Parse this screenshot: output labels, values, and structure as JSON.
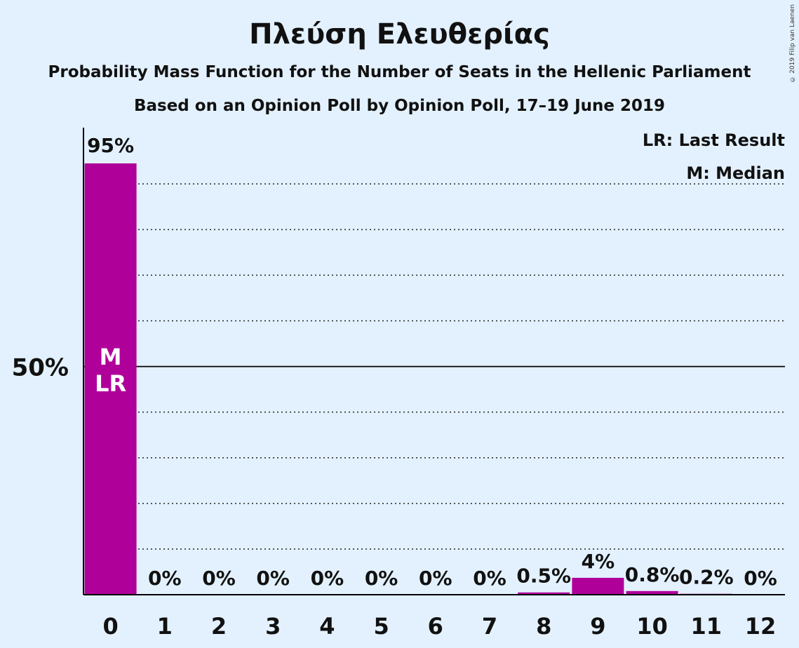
{
  "title": "Πλεύση Ελευθερίας",
  "subtitle": "Probability Mass Function for the Number of Seats in the Hellenic Parliament",
  "subtitle2": "Based on an Opinion Poll by Opinion Poll, 17–19 June 2019",
  "copyright": "© 2019 Filip van Laenen",
  "legend": {
    "lr": "LR: Last Result",
    "m": "M: Median"
  },
  "colors": {
    "bar": "#b0009a",
    "background": "#e3f1fe"
  },
  "chart_data": {
    "type": "bar",
    "categories": [
      "0",
      "1",
      "2",
      "3",
      "4",
      "5",
      "6",
      "7",
      "8",
      "9",
      "10",
      "11",
      "12"
    ],
    "values": [
      94.5,
      0,
      0,
      0,
      0,
      0,
      0,
      0,
      0.5,
      3.7,
      0.8,
      0.2,
      0
    ],
    "data_labels": [
      "95%",
      "0%",
      "0%",
      "0%",
      "0%",
      "0%",
      "0%",
      "0%",
      "0.5%",
      "4%",
      "0.8%",
      "0.2%",
      "0%"
    ],
    "bar_markers": [
      {
        "category": "0",
        "lines": [
          "M",
          "LR"
        ]
      }
    ],
    "ylim": [
      0,
      100
    ],
    "y_ticks": [
      {
        "value": 50,
        "label": "50%"
      }
    ],
    "gridlines": [
      10,
      20,
      30,
      40,
      60,
      70,
      80,
      90
    ],
    "grid": true,
    "legend_position": "top-right"
  }
}
